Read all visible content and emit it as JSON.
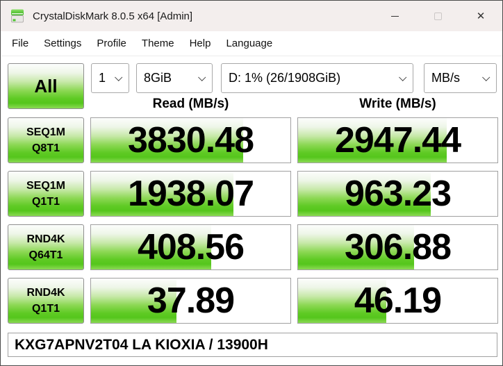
{
  "window": {
    "title": "CrystalDiskMark 8.0.5 x64 [Admin]"
  },
  "menu": {
    "items": [
      "File",
      "Settings",
      "Profile",
      "Theme",
      "Help",
      "Language"
    ]
  },
  "controls": {
    "all_button": "All",
    "test_count": "1",
    "test_size": "8GiB",
    "target_drive": "D: 1% (26/1908GiB)",
    "unit": "MB/s"
  },
  "columns": {
    "read": "Read (MB/s)",
    "write": "Write (MB/s)"
  },
  "rows": [
    {
      "label1": "SEQ1M",
      "label2": "Q8T1",
      "read": {
        "value": "3830.48",
        "fill_pct": 76.4
      },
      "write": {
        "value": "2947.44",
        "fill_pct": 74.5
      }
    },
    {
      "label1": "SEQ1M",
      "label2": "Q1T1",
      "read": {
        "value": "1938.07",
        "fill_pct": 71.5
      },
      "write": {
        "value": "963.23",
        "fill_pct": 66.4
      }
    },
    {
      "label1": "RND4K",
      "label2": "Q64T1",
      "read": {
        "value": "408.56",
        "fill_pct": 60.2
      },
      "write": {
        "value": "306.88",
        "fill_pct": 58.1
      }
    },
    {
      "label1": "RND4K",
      "label2": "Q1T1",
      "read": {
        "value": "37.89",
        "fill_pct": 43.0
      },
      "write": {
        "value": "46.19",
        "fill_pct": 44.4
      }
    }
  ],
  "footer": {
    "device": "KXG7APNV2T04 LA KIOXIA / 13900H"
  },
  "colors": {
    "accent_green": "#5fca24",
    "titlebar_bg": "#f3eeed"
  }
}
